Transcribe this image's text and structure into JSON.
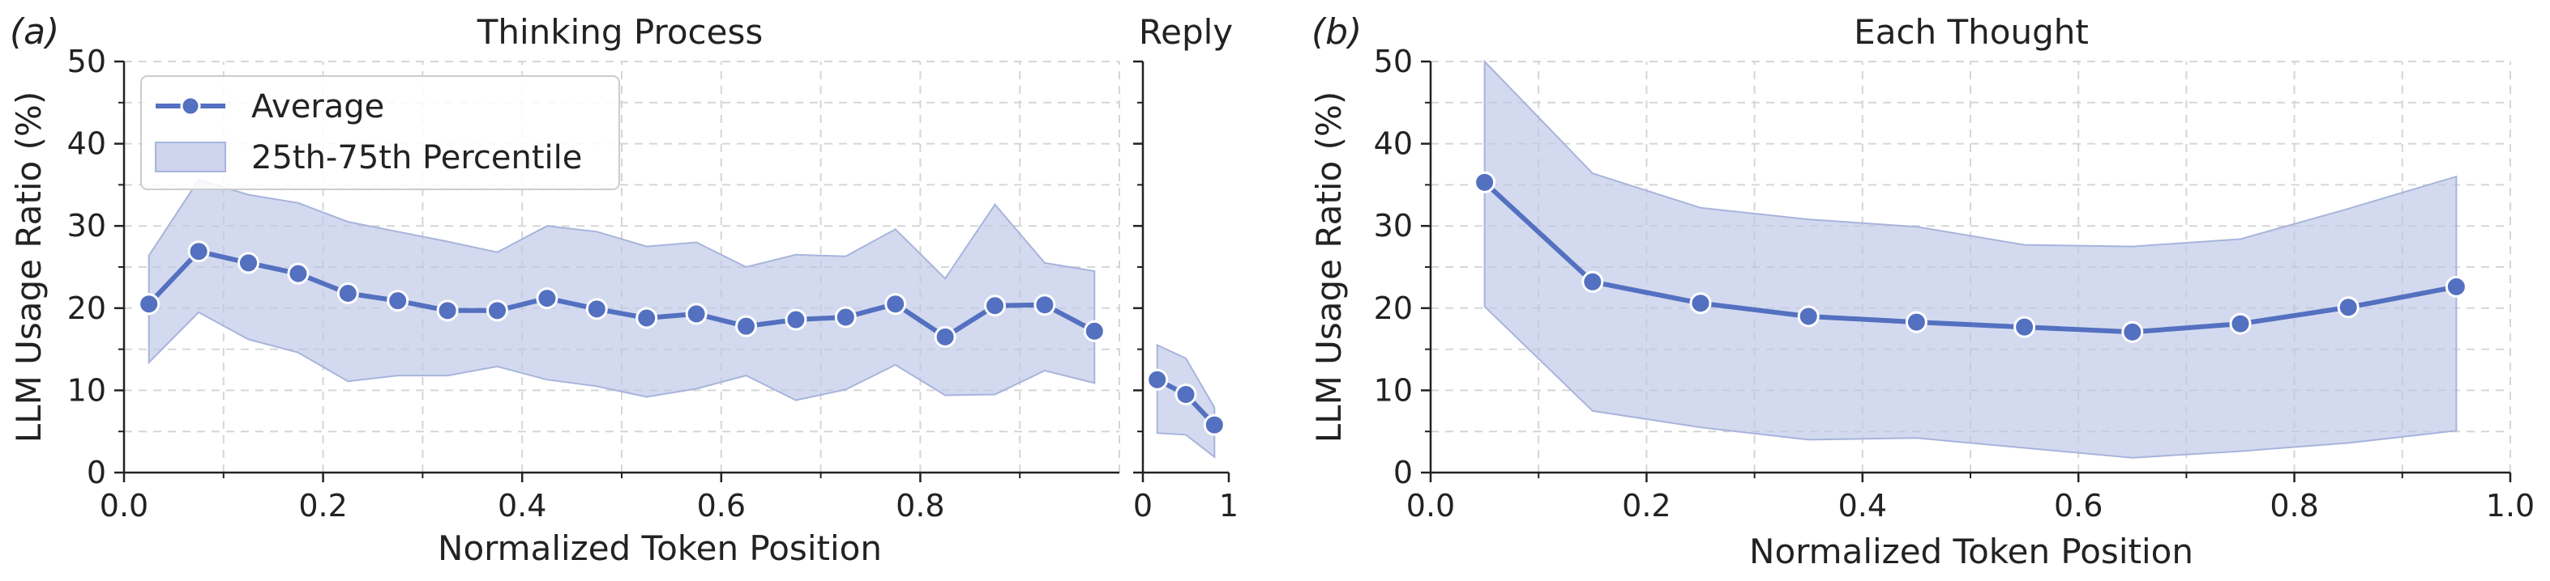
{
  "style": {
    "line_color": "#5470c0",
    "band_color": "#bcc6e6",
    "grid_color": "#d6d6d6",
    "axis_color": "#222222"
  },
  "legend": {
    "average_label": "Average",
    "band_label": "25th-75th Percentile"
  },
  "chart_data": [
    {
      "id": "thinking",
      "type": "line",
      "panel_letter": "(a)",
      "title": "Thinking Process",
      "xlabel": "Normalized Token Position",
      "ylabel": "LLM Usage Ratio (%)",
      "xlim": [
        0,
        1
      ],
      "ylim": [
        0,
        50
      ],
      "xticks": [
        0,
        0.2,
        0.4,
        0.6,
        0.8
      ],
      "xtick_labels": [
        "0.0",
        "0.2",
        "0.4",
        "0.6",
        "0.8"
      ],
      "yticks": [
        0,
        10,
        20,
        30,
        40,
        50
      ],
      "ytick_labels": [
        "0",
        "10",
        "20",
        "30",
        "40",
        "50"
      ],
      "grid": true,
      "legend_position": "upper-left",
      "x": [
        0.025,
        0.075,
        0.125,
        0.175,
        0.225,
        0.275,
        0.325,
        0.375,
        0.425,
        0.475,
        0.525,
        0.575,
        0.625,
        0.675,
        0.725,
        0.775,
        0.825,
        0.875,
        0.925,
        0.975
      ],
      "series": [
        {
          "name": "Average",
          "values": [
            20.5,
            26.9,
            25.5,
            24.2,
            21.8,
            20.9,
            19.7,
            19.7,
            21.2,
            19.9,
            18.8,
            19.3,
            17.8,
            18.6,
            18.9,
            20.5,
            16.5,
            20.3,
            20.4,
            17.2
          ]
        },
        {
          "name": "25th-75th Percentile",
          "lower": [
            13.4,
            19.5,
            16.2,
            14.6,
            11.1,
            11.8,
            11.8,
            12.9,
            11.3,
            10.5,
            9.2,
            10.2,
            11.8,
            8.8,
            10.1,
            13.1,
            9.4,
            9.5,
            12.4,
            10.9
          ],
          "upper": [
            26.4,
            35.6,
            33.8,
            32.8,
            30.5,
            29.3,
            28.1,
            26.8,
            30.0,
            29.3,
            27.5,
            28.0,
            25.0,
            26.5,
            26.3,
            29.6,
            23.6,
            32.6,
            25.5,
            24.5
          ]
        }
      ]
    },
    {
      "id": "reply",
      "type": "line",
      "title": "Reply",
      "xlim": [
        0,
        1
      ],
      "ylim": [
        0,
        50
      ],
      "xticks": [
        0,
        1
      ],
      "xtick_labels": [
        "0",
        "1"
      ],
      "yticks": [
        0,
        10,
        20,
        30,
        40,
        50
      ],
      "grid": false,
      "x": [
        0.167,
        0.5,
        0.833
      ],
      "series": [
        {
          "name": "Average",
          "values": [
            11.3,
            9.5,
            5.8
          ]
        },
        {
          "name": "25th-75th Percentile",
          "lower": [
            4.8,
            4.6,
            1.9
          ],
          "upper": [
            15.5,
            13.9,
            7.9
          ]
        }
      ]
    },
    {
      "id": "thought",
      "type": "line",
      "panel_letter": "(b)",
      "title": "Each Thought",
      "xlabel": "Normalized Token Position",
      "ylabel": "LLM Usage Ratio (%)",
      "xlim": [
        0,
        1
      ],
      "ylim": [
        0,
        50
      ],
      "xticks": [
        0,
        0.2,
        0.4,
        0.6,
        0.8,
        1.0
      ],
      "xtick_labels": [
        "0.0",
        "0.2",
        "0.4",
        "0.6",
        "0.8",
        "1.0"
      ],
      "yticks": [
        0,
        10,
        20,
        30,
        40,
        50
      ],
      "ytick_labels": [
        "0",
        "10",
        "20",
        "30",
        "40",
        "50"
      ],
      "grid": true,
      "x": [
        0.05,
        0.15,
        0.25,
        0.35,
        0.45,
        0.55,
        0.65,
        0.75,
        0.85,
        0.95
      ],
      "series": [
        {
          "name": "Average",
          "values": [
            35.3,
            23.2,
            20.6,
            19.0,
            18.3,
            17.7,
            17.1,
            18.1,
            20.1,
            22.6
          ]
        },
        {
          "name": "25th-75th Percentile",
          "lower": [
            20.2,
            7.5,
            5.5,
            4.0,
            4.2,
            3.0,
            1.8,
            2.6,
            3.6,
            5.1
          ],
          "upper": [
            50.0,
            36.4,
            32.2,
            30.8,
            29.9,
            27.7,
            27.5,
            28.4,
            32.1,
            36.0
          ]
        }
      ]
    }
  ]
}
